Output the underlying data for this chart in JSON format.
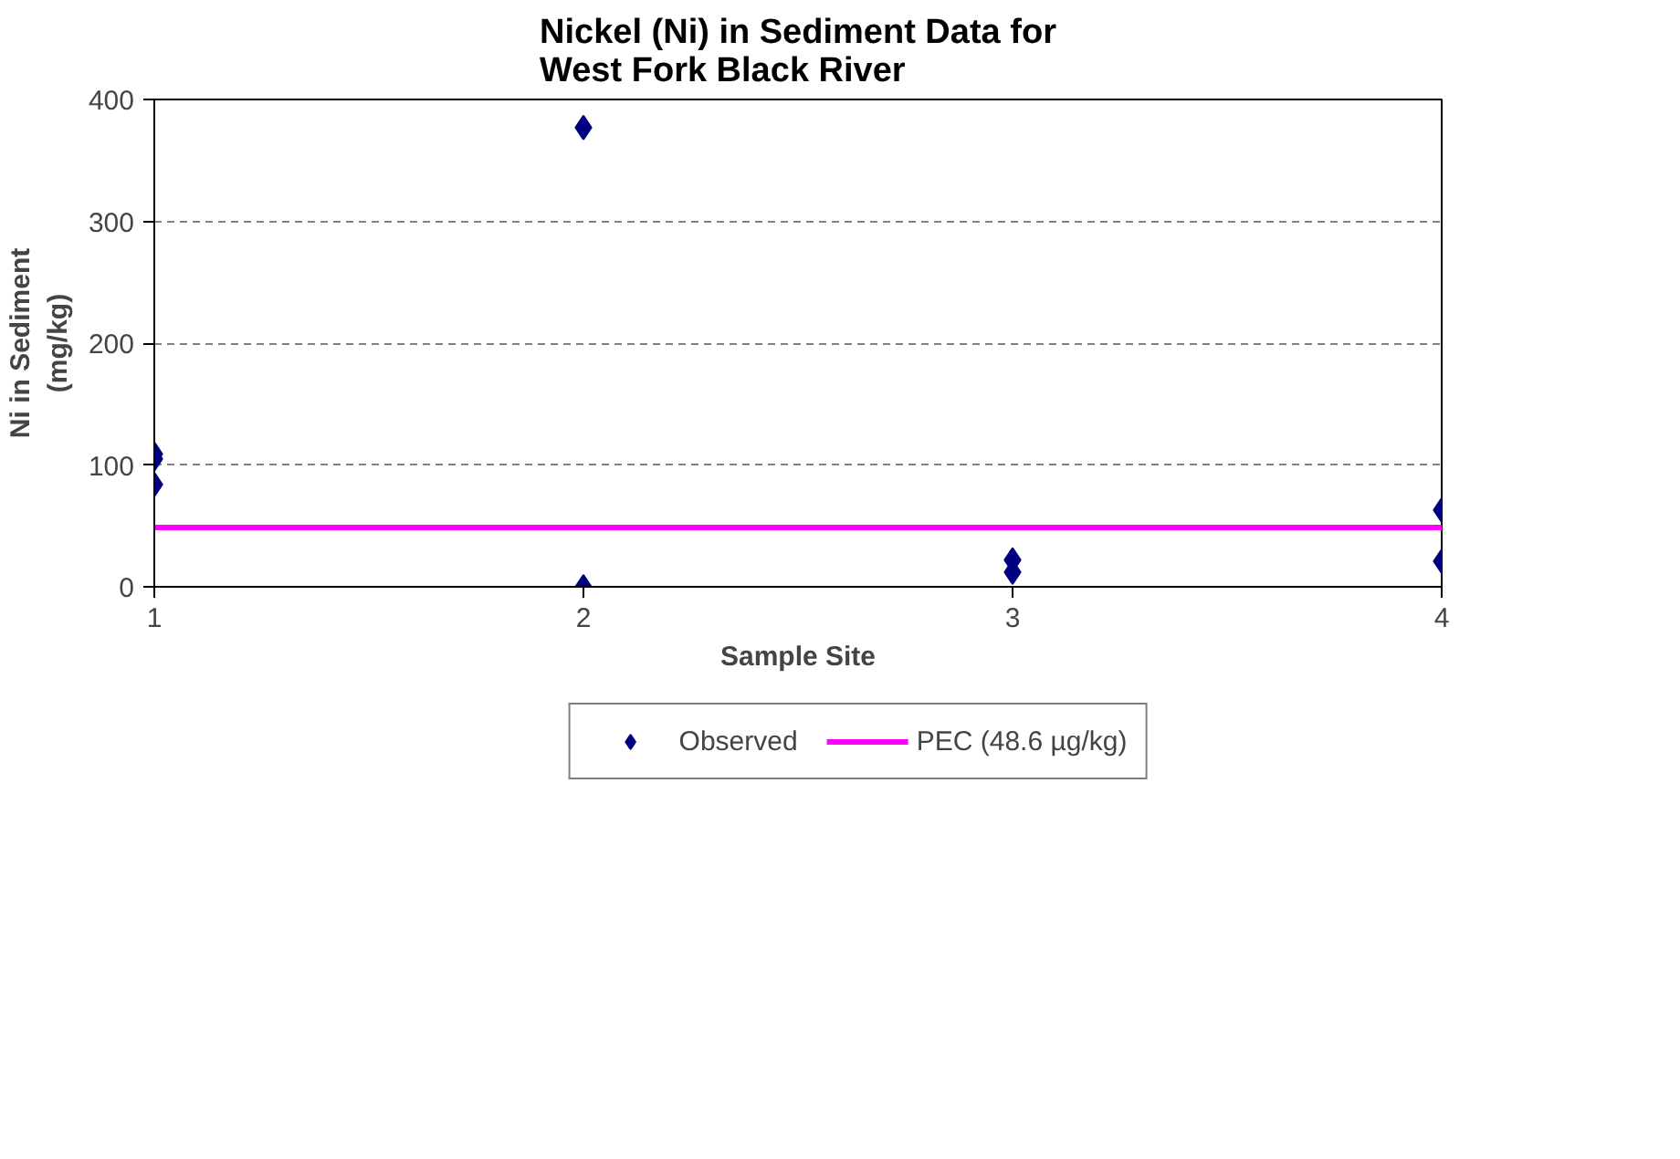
{
  "chart_data": {
    "type": "scatter",
    "title": "Nickel (Ni) in Sediment Data for\nWest Fork Black River",
    "xlabel": "Sample Site",
    "ylabel": "Ni in Sediment\n(mg/kg)",
    "series": [
      {
        "name": "Observed",
        "color": "#000080",
        "marker": "diamond",
        "x": [
          1,
          1,
          1,
          2,
          2,
          3,
          3,
          4,
          4
        ],
        "values": [
          109,
          105,
          84,
          377,
          0,
          22,
          12,
          63,
          21
        ]
      },
      {
        "name": "PEC (48.6 µg/kg)",
        "type": "line",
        "color": "#ff00ff",
        "line_style": "solid",
        "x": [
          1,
          4
        ],
        "values": [
          48.6,
          48.6
        ]
      }
    ],
    "xlim": [
      1,
      4
    ],
    "ylim": [
      0,
      400
    ],
    "xticks": [
      1,
      2,
      3,
      4
    ],
    "yticks": [
      0,
      100,
      200,
      300,
      400
    ],
    "grid": "y",
    "legend": "bottom"
  }
}
